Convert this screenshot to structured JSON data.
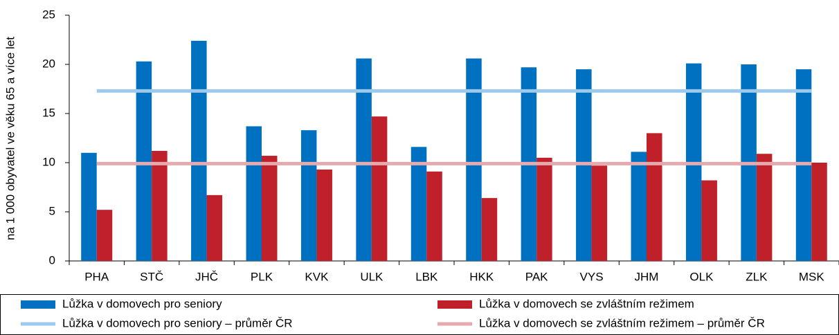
{
  "chart_data": {
    "type": "bar",
    "y_label": "na 1 000 obyvatel ve věku 65 a více let",
    "categories": [
      "PHA",
      "STČ",
      "JHČ",
      "PLK",
      "KVK",
      "ULK",
      "LBK",
      "HKK",
      "PAK",
      "VYS",
      "JHM",
      "OLK",
      "ZLK",
      "MSK"
    ],
    "series": [
      {
        "name": "Lůžka v domovech pro seniory",
        "type": "bar",
        "color": "#0070c0",
        "values": [
          11.0,
          20.3,
          22.4,
          13.7,
          13.3,
          20.6,
          11.6,
          20.6,
          19.7,
          19.5,
          11.1,
          20.1,
          20.0,
          19.5
        ]
      },
      {
        "name": "Lůžka v domovech se zvláštním režimem",
        "type": "bar",
        "color": "#c0202a",
        "values": [
          5.2,
          11.2,
          6.7,
          10.7,
          9.3,
          14.7,
          9.1,
          6.4,
          10.5,
          9.7,
          13.0,
          8.2,
          10.9,
          10.0
        ]
      },
      {
        "name": "Lůžka v domovech pro seniory – průměr ČR",
        "type": "line",
        "color": "#9dc9ec",
        "values": [
          17.3,
          17.3,
          17.3,
          17.3,
          17.3,
          17.3,
          17.3,
          17.3,
          17.3,
          17.3,
          17.3,
          17.3,
          17.3,
          17.3
        ]
      },
      {
        "name": "Lůžka v domovech se zvláštním režimem – průměr ČR",
        "type": "line",
        "color": "#e6a9ae",
        "values": [
          9.9,
          9.9,
          9.9,
          9.9,
          9.9,
          9.9,
          9.9,
          9.9,
          9.9,
          9.9,
          9.9,
          9.9,
          9.9,
          9.9
        ]
      }
    ],
    "ylim": [
      0,
      25
    ],
    "yticks": [
      0,
      5,
      10,
      15,
      20,
      25
    ],
    "grid": false
  }
}
